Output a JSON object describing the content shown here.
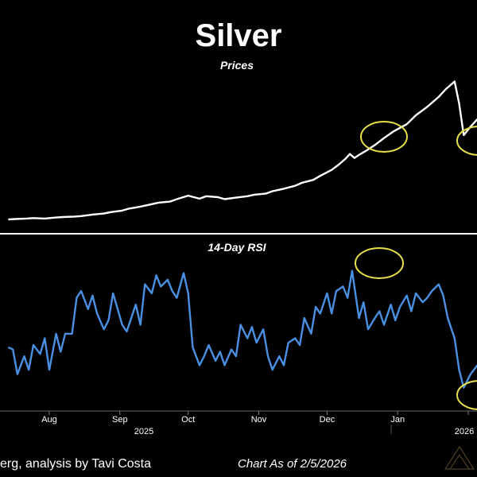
{
  "colors": {
    "background": "#000000",
    "price_line": "#ffffff",
    "rsi_line": "#4a90e2",
    "highlight": "#e6e04a",
    "divider": "#ffffff",
    "watermark": "#b08a4a"
  },
  "chart_data": [
    {
      "type": "line",
      "title": "Silver",
      "subtitle": "Prices",
      "x_label_months": [
        "Aug",
        "Sep",
        "Oct",
        "Nov",
        "Dec",
        "Jan"
      ],
      "year_labels": [
        "2025",
        "2026"
      ],
      "grid": false,
      "annotations": [
        "circle-highlight-dec",
        "circle-highlight-feb"
      ],
      "series": [
        {
          "x": [
            "2025-07-14",
            "2025-07-17",
            "2025-07-22",
            "2025-07-25",
            "2025-07-30",
            "2025-08-04",
            "2025-08-07",
            "2025-08-12",
            "2025-08-15",
            "2025-08-20",
            "2025-08-25",
            "2025-08-28",
            "2025-09-02",
            "2025-09-05",
            "2025-09-10",
            "2025-09-15",
            "2025-09-18",
            "2025-09-23",
            "2025-09-26",
            "2025-10-01",
            "2025-10-06",
            "2025-10-09",
            "2025-10-14",
            "2025-10-17",
            "2025-10-22",
            "2025-10-27",
            "2025-10-30",
            "2025-11-04",
            "2025-11-07",
            "2025-11-12",
            "2025-11-17",
            "2025-11-20",
            "2025-11-25",
            "2025-11-28",
            "2025-12-03",
            "2025-12-06",
            "2025-12-09",
            "2025-12-11",
            "2025-12-13",
            "2025-12-15",
            "2025-12-18",
            "2025-12-22",
            "2025-12-26",
            "2025-12-30",
            "2026-01-05",
            "2026-01-09",
            "2026-01-14",
            "2026-01-19",
            "2026-01-22",
            "2026-01-26",
            "2026-01-28",
            "2026-01-30",
            "2026-02-02",
            "2026-02-05"
          ],
          "values": [
            37.8,
            37.9,
            38.0,
            38.1,
            38.0,
            38.2,
            38.3,
            38.4,
            38.5,
            38.8,
            39.0,
            39.3,
            39.6,
            40.0,
            40.4,
            40.9,
            41.2,
            41.4,
            41.9,
            42.6,
            42.0,
            42.5,
            42.3,
            41.9,
            42.2,
            42.5,
            42.8,
            43.0,
            43.5,
            44.0,
            44.6,
            45.2,
            45.8,
            46.6,
            47.8,
            48.8,
            50.0,
            51.0,
            50.2,
            50.8,
            51.6,
            52.8,
            54.2,
            55.5,
            57.0,
            58.8,
            60.5,
            62.5,
            64.0,
            65.6,
            61.2,
            54.8,
            56.5,
            58.0
          ]
        }
      ]
    },
    {
      "type": "line",
      "title": "14-Day RSI",
      "ylim": [
        20,
        90
      ],
      "grid": false,
      "annotations": [
        "circle-highlight-dec-rsi",
        "circle-highlight-feb-rsi"
      ],
      "series": [
        {
          "x": [
            "2025-07-14",
            "2025-07-16",
            "2025-07-18",
            "2025-07-21",
            "2025-07-23",
            "2025-07-25",
            "2025-07-28",
            "2025-07-30",
            "2025-08-01",
            "2025-08-04",
            "2025-08-06",
            "2025-08-08",
            "2025-08-11",
            "2025-08-13",
            "2025-08-15",
            "2025-08-18",
            "2025-08-20",
            "2025-08-22",
            "2025-08-25",
            "2025-08-27",
            "2025-08-29",
            "2025-09-02",
            "2025-09-04",
            "2025-09-08",
            "2025-09-10",
            "2025-09-12",
            "2025-09-15",
            "2025-09-17",
            "2025-09-19",
            "2025-09-22",
            "2025-09-24",
            "2025-09-26",
            "2025-09-29",
            "2025-10-01",
            "2025-10-03",
            "2025-10-06",
            "2025-10-08",
            "2025-10-10",
            "2025-10-13",
            "2025-10-15",
            "2025-10-17",
            "2025-10-20",
            "2025-10-22",
            "2025-10-24",
            "2025-10-27",
            "2025-10-29",
            "2025-10-31",
            "2025-11-03",
            "2025-11-05",
            "2025-11-07",
            "2025-11-10",
            "2025-11-12",
            "2025-11-14",
            "2025-11-17",
            "2025-11-19",
            "2025-11-21",
            "2025-11-24",
            "2025-11-26",
            "2025-11-28",
            "2025-12-01",
            "2025-12-03",
            "2025-12-05",
            "2025-12-08",
            "2025-12-10",
            "2025-12-12",
            "2025-12-15",
            "2025-12-17",
            "2025-12-19",
            "2025-12-22",
            "2025-12-24",
            "2025-12-26",
            "2025-12-29",
            "2025-12-31",
            "2026-01-02",
            "2026-01-05",
            "2026-01-07",
            "2026-01-09",
            "2026-01-12",
            "2026-01-14",
            "2026-01-16",
            "2026-01-19",
            "2026-01-21",
            "2026-01-23",
            "2026-01-26",
            "2026-01-28",
            "2026-01-30",
            "2026-02-02",
            "2026-02-05"
          ],
          "values": [
            48,
            47,
            36,
            44,
            38,
            49,
            45,
            52,
            38,
            54,
            46,
            54,
            54,
            70,
            73,
            65,
            71,
            63,
            56,
            60,
            72,
            58,
            55,
            67,
            58,
            76,
            72,
            80,
            75,
            78,
            73,
            70,
            81,
            72,
            48,
            40,
            44,
            49,
            42,
            46,
            40,
            47,
            44,
            58,
            52,
            57,
            50,
            56,
            44,
            38,
            44,
            40,
            50,
            52,
            49,
            61,
            54,
            66,
            63,
            72,
            63,
            73,
            75,
            70,
            82,
            61,
            68,
            56,
            61,
            64,
            58,
            67,
            60,
            66,
            71,
            64,
            72,
            68,
            70,
            73,
            76,
            71,
            61,
            52,
            38,
            30,
            36,
            40
          ]
        }
      ]
    }
  ],
  "footer": {
    "source_text": "erg, analysis by Tavi Costa",
    "date_text": "Chart As of 2/5/2026"
  }
}
